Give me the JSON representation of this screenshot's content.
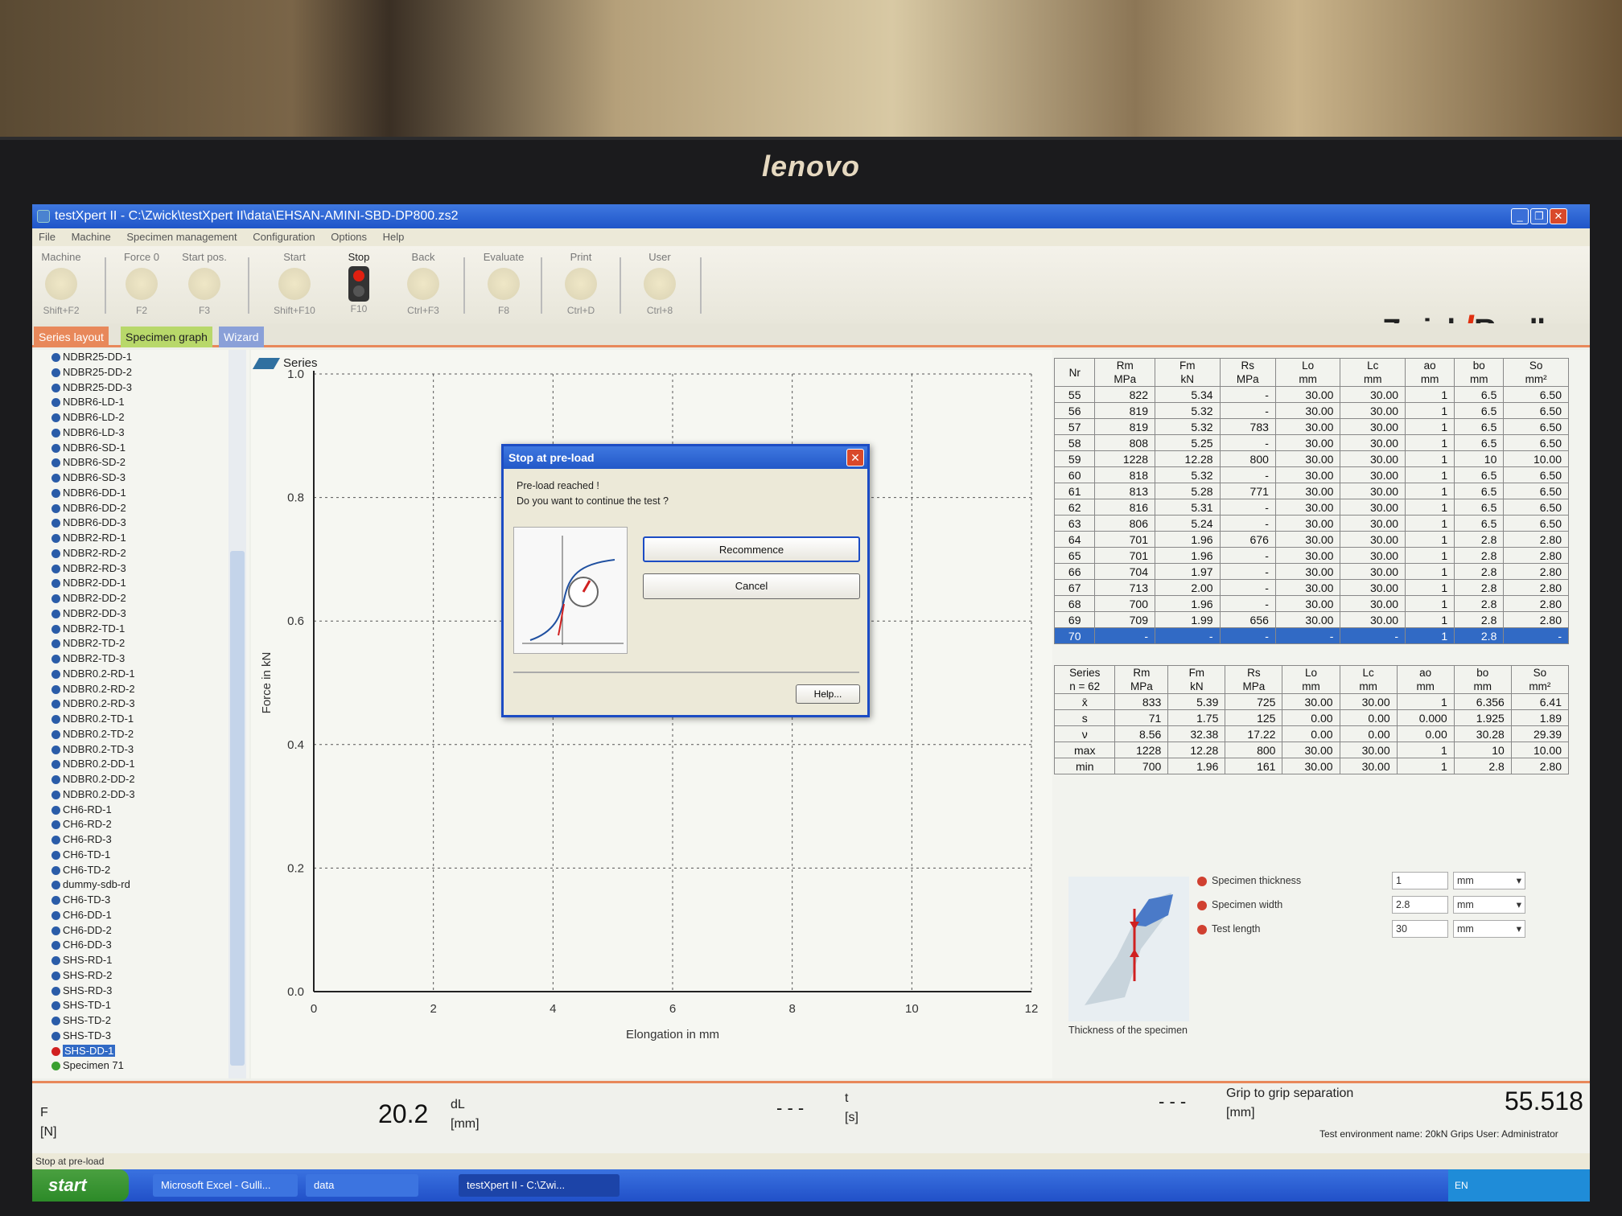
{
  "window": {
    "title": "testXpert II - C:\\Zwick\\testXpert II\\data\\EHSAN-AMINI-SBD-DP800.zs2"
  },
  "menu": [
    "File",
    "Machine",
    "Specimen management",
    "Configuration",
    "Options",
    "Help"
  ],
  "toolbar": [
    {
      "label": "Machine",
      "shortcut": "Shift+F2"
    },
    {
      "label": "Force 0",
      "shortcut": "F2"
    },
    {
      "label": "Start pos.",
      "shortcut": "F3"
    },
    {
      "label": "Start",
      "shortcut": "Shift+F10"
    },
    {
      "label": "Stop",
      "shortcut": "F10"
    },
    {
      "label": "Back",
      "shortcut": "Ctrl+F3"
    },
    {
      "label": "Evaluate",
      "shortcut": "F8"
    },
    {
      "label": "Print",
      "shortcut": "Ctrl+D"
    },
    {
      "label": "User",
      "shortcut": "Ctrl+8"
    }
  ],
  "logo": {
    "left": "Zwick",
    "right": "Roell"
  },
  "tabs": [
    "Series layout",
    "Specimen graph",
    "Wizard"
  ],
  "tree": [
    "NDBR25-DD-1",
    "NDBR25-DD-2",
    "NDBR25-DD-3",
    "NDBR6-LD-1",
    "NDBR6-LD-2",
    "NDBR6-LD-3",
    "NDBR6-SD-1",
    "NDBR6-SD-2",
    "NDBR6-SD-3",
    "NDBR6-DD-1",
    "NDBR6-DD-2",
    "NDBR6-DD-3",
    "NDBR2-RD-1",
    "NDBR2-RD-2",
    "NDBR2-RD-3",
    "NDBR2-DD-1",
    "NDBR2-DD-2",
    "NDBR2-DD-3",
    "NDBR2-TD-1",
    "NDBR2-TD-2",
    "NDBR2-TD-3",
    "NDBR0.2-RD-1",
    "NDBR0.2-RD-2",
    "NDBR0.2-RD-3",
    "NDBR0.2-TD-1",
    "NDBR0.2-TD-2",
    "NDBR0.2-TD-3",
    "NDBR0.2-DD-1",
    "NDBR0.2-DD-2",
    "NDBR0.2-DD-3",
    "CH6-RD-1",
    "CH6-RD-2",
    "CH6-RD-3",
    "CH6-TD-1",
    "CH6-TD-2",
    "dummy-sdb-rd",
    "CH6-TD-3",
    "CH6-DD-1",
    "CH6-DD-2",
    "CH6-DD-3",
    "SHS-RD-1",
    "SHS-RD-2",
    "SHS-RD-3",
    "SHS-TD-1",
    "SHS-TD-2",
    "SHS-TD-3",
    "SHS-DD-1",
    "Specimen 71"
  ],
  "graph": {
    "legend": "Series"
  },
  "chart_data": {
    "type": "line",
    "title": "",
    "xlabel": "Elongation in mm",
    "ylabel": "Force in kN",
    "xlim": [
      0,
      12
    ],
    "ylim": [
      0,
      1.0
    ],
    "xticks": [
      "0",
      "2",
      "4",
      "6",
      "8",
      "10",
      "12"
    ],
    "yticks": [
      "0.0",
      "0.2",
      "0.4",
      "0.6",
      "0.8",
      "1.0"
    ],
    "grid": true,
    "series": []
  },
  "results": {
    "headers": [
      [
        "Nr",
        ""
      ],
      [
        "Rm",
        "MPa"
      ],
      [
        "Fm",
        "kN"
      ],
      [
        "Rs",
        "MPa"
      ],
      [
        "Lo",
        "mm"
      ],
      [
        "Lc",
        "mm"
      ],
      [
        "ao",
        "mm"
      ],
      [
        "bo",
        "mm"
      ],
      [
        "So",
        "mm²"
      ]
    ],
    "rows": [
      [
        "55",
        "822",
        "5.34",
        "-",
        "30.00",
        "30.00",
        "1",
        "6.5",
        "6.50"
      ],
      [
        "56",
        "819",
        "5.32",
        "-",
        "30.00",
        "30.00",
        "1",
        "6.5",
        "6.50"
      ],
      [
        "57",
        "819",
        "5.32",
        "783",
        "30.00",
        "30.00",
        "1",
        "6.5",
        "6.50"
      ],
      [
        "58",
        "808",
        "5.25",
        "-",
        "30.00",
        "30.00",
        "1",
        "6.5",
        "6.50"
      ],
      [
        "59",
        "1228",
        "12.28",
        "800",
        "30.00",
        "30.00",
        "1",
        "10",
        "10.00"
      ],
      [
        "60",
        "818",
        "5.32",
        "-",
        "30.00",
        "30.00",
        "1",
        "6.5",
        "6.50"
      ],
      [
        "61",
        "813",
        "5.28",
        "771",
        "30.00",
        "30.00",
        "1",
        "6.5",
        "6.50"
      ],
      [
        "62",
        "816",
        "5.31",
        "-",
        "30.00",
        "30.00",
        "1",
        "6.5",
        "6.50"
      ],
      [
        "63",
        "806",
        "5.24",
        "-",
        "30.00",
        "30.00",
        "1",
        "6.5",
        "6.50"
      ],
      [
        "64",
        "701",
        "1.96",
        "676",
        "30.00",
        "30.00",
        "1",
        "2.8",
        "2.80"
      ],
      [
        "65",
        "701",
        "1.96",
        "-",
        "30.00",
        "30.00",
        "1",
        "2.8",
        "2.80"
      ],
      [
        "66",
        "704",
        "1.97",
        "-",
        "30.00",
        "30.00",
        "1",
        "2.8",
        "2.80"
      ],
      [
        "67",
        "713",
        "2.00",
        "-",
        "30.00",
        "30.00",
        "1",
        "2.8",
        "2.80"
      ],
      [
        "68",
        "700",
        "1.96",
        "-",
        "30.00",
        "30.00",
        "1",
        "2.8",
        "2.80"
      ],
      [
        "69",
        "709",
        "1.99",
        "656",
        "30.00",
        "30.00",
        "1",
        "2.8",
        "2.80"
      ],
      [
        "70",
        "-",
        "-",
        "-",
        "-",
        "-",
        "1",
        "2.8",
        "-"
      ]
    ],
    "stats_headers": [
      [
        "Series",
        "n = 62"
      ],
      [
        "Rm",
        "MPa"
      ],
      [
        "Fm",
        "kN"
      ],
      [
        "Rs",
        "MPa"
      ],
      [
        "Lo",
        "mm"
      ],
      [
        "Lc",
        "mm"
      ],
      [
        "ao",
        "mm"
      ],
      [
        "bo",
        "mm"
      ],
      [
        "So",
        "mm²"
      ]
    ],
    "stats": [
      [
        "x̄",
        "833",
        "5.39",
        "725",
        "30.00",
        "30.00",
        "1",
        "6.356",
        "6.41"
      ],
      [
        "s",
        "71",
        "1.75",
        "125",
        "0.00",
        "0.00",
        "0.000",
        "1.925",
        "1.89"
      ],
      [
        "ν",
        "8.56",
        "32.38",
        "17.22",
        "0.00",
        "0.00",
        "0.00",
        "30.28",
        "29.39"
      ],
      [
        "max",
        "1228",
        "12.28",
        "800",
        "30.00",
        "30.00",
        "1",
        "10",
        "10.00"
      ],
      [
        "min",
        "700",
        "1.96",
        "161",
        "30.00",
        "30.00",
        "1",
        "2.8",
        "2.80"
      ]
    ]
  },
  "dialog": {
    "title": "Stop at pre-load",
    "line1": "Pre-load reached !",
    "line2": "Do you want to continue the test ?",
    "recommence": "Recommence",
    "cancel": "Cancel",
    "help": "Help..."
  },
  "params": {
    "caption": "Thickness of the specimen",
    "items": [
      {
        "label": "Specimen thickness",
        "value": "1",
        "unit": "mm"
      },
      {
        "label": "Specimen width",
        "value": "2.8",
        "unit": "mm"
      },
      {
        "label": "Test length",
        "value": "30",
        "unit": "mm"
      }
    ]
  },
  "readout": {
    "f_label": "F",
    "f_unit": "[N]",
    "dl_value": "20.2",
    "dl_label": "dL",
    "dl_unit": "[mm]",
    "t_value": "- - -",
    "t_label": "t",
    "t_unit": "[s]",
    "grip_dash": "- - -",
    "grip_label": "Grip to grip separation",
    "grip_unit": "[mm]",
    "grip_value": "55.518",
    "env": "Test environment name: 20kN Grips  User: Administrator"
  },
  "status": {
    "text": "Stop at pre-load"
  },
  "taskbar": {
    "start": "start",
    "tasks": [
      "Microsoft Excel - Gulli...",
      "data",
      "testXpert II - C:\\Zwi..."
    ],
    "tray": "EN"
  }
}
